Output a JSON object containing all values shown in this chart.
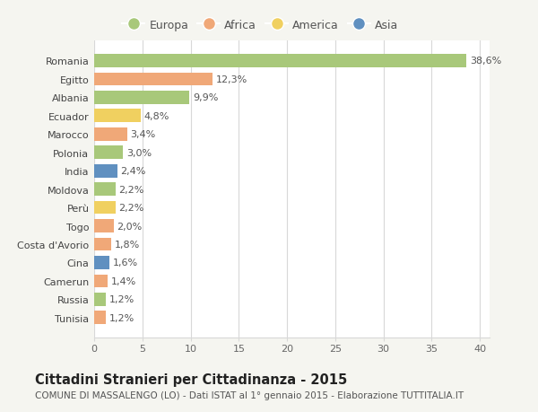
{
  "countries": [
    "Romania",
    "Egitto",
    "Albania",
    "Ecuador",
    "Marocco",
    "Polonia",
    "India",
    "Moldova",
    "Perù",
    "Togo",
    "Costa d'Avorio",
    "Cina",
    "Camerun",
    "Russia",
    "Tunisia"
  ],
  "values": [
    38.6,
    12.3,
    9.9,
    4.8,
    3.4,
    3.0,
    2.4,
    2.2,
    2.2,
    2.0,
    1.8,
    1.6,
    1.4,
    1.2,
    1.2
  ],
  "labels": [
    "38,6%",
    "12,3%",
    "9,9%",
    "4,8%",
    "3,4%",
    "3,0%",
    "2,4%",
    "2,2%",
    "2,2%",
    "2,0%",
    "1,8%",
    "1,6%",
    "1,4%",
    "1,2%",
    "1,2%"
  ],
  "continents": [
    "Europa",
    "Africa",
    "Europa",
    "America",
    "Africa",
    "Europa",
    "Asia",
    "Europa",
    "America",
    "Africa",
    "Africa",
    "Asia",
    "Africa",
    "Europa",
    "Africa"
  ],
  "colors": {
    "Europa": "#a8c87a",
    "Africa": "#f0a878",
    "America": "#f0d060",
    "Asia": "#6090c0"
  },
  "legend_order": [
    "Europa",
    "Africa",
    "America",
    "Asia"
  ],
  "title": "Cittadini Stranieri per Cittadinanza - 2015",
  "subtitle": "COMUNE DI MASSALENGO (LO) - Dati ISTAT al 1° gennaio 2015 - Elaborazione TUTTITALIA.IT",
  "xlim": [
    0,
    41
  ],
  "xticks": [
    0,
    5,
    10,
    15,
    20,
    25,
    30,
    35,
    40
  ],
  "background_color": "#f5f5f0",
  "plot_background": "#ffffff",
  "grid_color": "#d8d8d8",
  "bar_height": 0.72,
  "title_fontsize": 10.5,
  "subtitle_fontsize": 7.5,
  "tick_fontsize": 8,
  "label_fontsize": 8,
  "legend_fontsize": 9
}
